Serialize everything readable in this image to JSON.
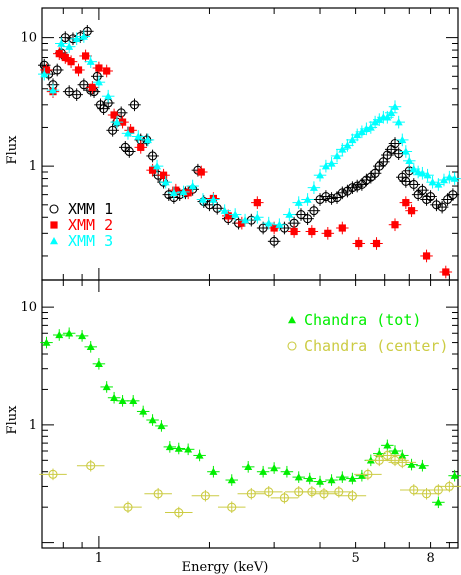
{
  "chart_data": [
    {
      "type": "scatter",
      "panel": "top",
      "xscale": "log",
      "yscale": "log",
      "xlim": [
        0.7,
        9.5
      ],
      "ylim": [
        0.13,
        17
      ],
      "ylabel": "Flux",
      "xlabel": "",
      "y_tick_labels": [
        "10",
        "1"
      ],
      "legend_position": "bottom-left",
      "series": [
        {
          "name": "XMM 1",
          "marker": "open-circle",
          "color": "#000000",
          "points": [
            [
              0.71,
              6.1
            ],
            [
              0.73,
              5.2
            ],
            [
              0.75,
              4.3
            ],
            [
              0.77,
              5.6
            ],
            [
              0.79,
              7.6
            ],
            [
              0.81,
              10.0
            ],
            [
              0.83,
              3.8
            ],
            [
              0.85,
              9.8
            ],
            [
              0.87,
              3.6
            ],
            [
              0.89,
              10.2
            ],
            [
              0.91,
              4.3
            ],
            [
              0.93,
              11.2
            ],
            [
              0.95,
              3.9
            ],
            [
              0.97,
              3.8
            ],
            [
              0.99,
              5.0
            ],
            [
              1.01,
              3.0
            ],
            [
              1.03,
              2.8
            ],
            [
              1.06,
              3.1
            ],
            [
              1.09,
              1.9
            ],
            [
              1.12,
              2.2
            ],
            [
              1.15,
              2.6
            ],
            [
              1.18,
              1.4
            ],
            [
              1.21,
              1.3
            ],
            [
              1.25,
              3.0
            ],
            [
              1.3,
              1.6
            ],
            [
              1.35,
              1.6
            ],
            [
              1.4,
              1.2
            ],
            [
              1.45,
              0.85
            ],
            [
              1.5,
              0.75
            ],
            [
              1.55,
              0.6
            ],
            [
              1.6,
              0.57
            ],
            [
              1.66,
              0.6
            ],
            [
              1.72,
              0.62
            ],
            [
              1.8,
              0.66
            ],
            [
              1.86,
              0.93
            ],
            [
              1.93,
              0.53
            ],
            [
              2.0,
              0.5
            ],
            [
              2.1,
              0.47
            ],
            [
              2.25,
              0.39
            ],
            [
              2.4,
              0.36
            ],
            [
              2.6,
              0.38
            ],
            [
              2.8,
              0.33
            ],
            [
              3.0,
              0.26
            ],
            [
              3.2,
              0.33
            ],
            [
              3.4,
              0.36
            ],
            [
              3.55,
              0.42
            ],
            [
              3.7,
              0.39
            ],
            [
              3.85,
              0.45
            ],
            [
              4.0,
              0.55
            ],
            [
              4.15,
              0.58
            ],
            [
              4.3,
              0.56
            ],
            [
              4.45,
              0.57
            ],
            [
              4.6,
              0.62
            ],
            [
              4.75,
              0.64
            ],
            [
              4.9,
              0.68
            ],
            [
              5.05,
              0.7
            ],
            [
              5.2,
              0.72
            ],
            [
              5.35,
              0.78
            ],
            [
              5.5,
              0.82
            ],
            [
              5.65,
              0.88
            ],
            [
              5.8,
              1.0
            ],
            [
              5.95,
              1.08
            ],
            [
              6.1,
              1.22
            ],
            [
              6.25,
              1.35
            ],
            [
              6.4,
              1.5
            ],
            [
              6.55,
              1.25
            ],
            [
              6.7,
              0.82
            ],
            [
              6.85,
              0.76
            ],
            [
              7.0,
              0.92
            ],
            [
              7.2,
              0.72
            ],
            [
              7.4,
              0.6
            ],
            [
              7.6,
              0.65
            ],
            [
              7.8,
              0.55
            ],
            [
              8.0,
              0.58
            ],
            [
              8.3,
              0.5
            ],
            [
              8.6,
              0.48
            ],
            [
              8.9,
              0.55
            ],
            [
              9.2,
              0.6
            ]
          ]
        },
        {
          "name": "XMM 2",
          "marker": "filled-square",
          "color": "#ff0000",
          "points": [
            [
              0.72,
              5.6
            ],
            [
              0.75,
              3.8
            ],
            [
              0.78,
              7.5
            ],
            [
              0.81,
              7.0
            ],
            [
              0.84,
              6.5
            ],
            [
              0.88,
              5.6
            ],
            [
              0.92,
              7.2
            ],
            [
              0.96,
              4.1
            ],
            [
              1.0,
              5.8
            ],
            [
              1.05,
              5.5
            ],
            [
              1.1,
              2.5
            ],
            [
              1.16,
              2.2
            ],
            [
              1.22,
              1.9
            ],
            [
              1.3,
              1.4
            ],
            [
              1.4,
              0.93
            ],
            [
              1.5,
              0.85
            ],
            [
              1.62,
              0.65
            ],
            [
              1.75,
              0.62
            ],
            [
              1.9,
              0.9
            ],
            [
              2.05,
              0.56
            ],
            [
              2.25,
              0.41
            ],
            [
              2.45,
              0.36
            ],
            [
              2.7,
              0.52
            ],
            [
              3.0,
              0.33
            ],
            [
              3.4,
              0.31
            ],
            [
              3.8,
              0.31
            ],
            [
              4.2,
              0.3
            ],
            [
              4.6,
              0.33
            ],
            [
              5.1,
              0.25
            ],
            [
              5.7,
              0.25
            ],
            [
              6.4,
              0.35
            ],
            [
              6.85,
              0.52
            ],
            [
              7.1,
              0.45
            ],
            [
              7.8,
              0.2
            ],
            [
              8.8,
              0.15
            ]
          ]
        },
        {
          "name": "XMM 3",
          "marker": "filled-triangle",
          "color": "#00ffff",
          "points": [
            [
              0.71,
              5.2
            ],
            [
              0.75,
              3.9
            ],
            [
              0.79,
              9.0
            ],
            [
              0.83,
              8.5
            ],
            [
              0.87,
              9.8
            ],
            [
              0.91,
              10.2
            ],
            [
              0.95,
              6.5
            ],
            [
              1.0,
              4.5
            ],
            [
              1.06,
              3.5
            ],
            [
              1.12,
              2.2
            ],
            [
              1.2,
              1.8
            ],
            [
              1.28,
              1.7
            ],
            [
              1.36,
              1.6
            ],
            [
              1.44,
              1.0
            ],
            [
              1.52,
              0.75
            ],
            [
              1.6,
              0.62
            ],
            [
              1.7,
              0.63
            ],
            [
              1.8,
              0.7
            ],
            [
              1.92,
              0.55
            ],
            [
              2.05,
              0.55
            ],
            [
              2.2,
              0.45
            ],
            [
              2.35,
              0.42
            ],
            [
              2.5,
              0.38
            ],
            [
              2.7,
              0.4
            ],
            [
              2.9,
              0.36
            ],
            [
              3.1,
              0.35
            ],
            [
              3.3,
              0.42
            ],
            [
              3.5,
              0.52
            ],
            [
              3.7,
              0.55
            ],
            [
              3.85,
              0.68
            ],
            [
              4.0,
              0.85
            ],
            [
              4.15,
              1.0
            ],
            [
              4.3,
              1.05
            ],
            [
              4.45,
              1.2
            ],
            [
              4.6,
              1.35
            ],
            [
              4.75,
              1.45
            ],
            [
              4.9,
              1.6
            ],
            [
              5.05,
              1.75
            ],
            [
              5.2,
              1.85
            ],
            [
              5.35,
              1.95
            ],
            [
              5.5,
              2.0
            ],
            [
              5.65,
              2.2
            ],
            [
              5.8,
              2.3
            ],
            [
              5.95,
              2.4
            ],
            [
              6.1,
              2.4
            ],
            [
              6.25,
              2.6
            ],
            [
              6.4,
              2.9
            ],
            [
              6.55,
              2.2
            ],
            [
              6.7,
              1.6
            ],
            [
              6.85,
              1.3
            ],
            [
              7.0,
              1.1
            ],
            [
              7.2,
              0.95
            ],
            [
              7.4,
              0.9
            ],
            [
              7.6,
              0.88
            ],
            [
              7.85,
              0.85
            ],
            [
              8.1,
              0.75
            ],
            [
              8.4,
              0.72
            ],
            [
              8.7,
              0.78
            ],
            [
              9.0,
              0.82
            ],
            [
              9.3,
              0.8
            ]
          ]
        }
      ]
    },
    {
      "type": "scatter",
      "panel": "bottom",
      "xscale": "log",
      "yscale": "log",
      "xlim": [
        0.7,
        9.5
      ],
      "ylim": [
        0.09,
        17
      ],
      "ylabel": "Flux",
      "xlabel": "Energy (keV)",
      "x_tick_labels": [
        "1",
        "5",
        "8"
      ],
      "y_tick_labels": [
        "10",
        "1"
      ],
      "legend_position": "top-right",
      "series": [
        {
          "name": "Chandra (tot)",
          "marker": "filled-triangle",
          "color": "#00ee00",
          "points": [
            [
              0.72,
              5.0
            ],
            [
              0.78,
              5.8
            ],
            [
              0.83,
              6.0
            ],
            [
              0.9,
              5.7
            ],
            [
              0.95,
              4.6
            ],
            [
              1.0,
              3.3
            ],
            [
              1.05,
              2.1
            ],
            [
              1.1,
              1.7
            ],
            [
              1.16,
              1.6
            ],
            [
              1.24,
              1.6
            ],
            [
              1.32,
              1.3
            ],
            [
              1.4,
              1.1
            ],
            [
              1.48,
              0.98
            ],
            [
              1.56,
              0.65
            ],
            [
              1.65,
              0.63
            ],
            [
              1.75,
              0.62
            ],
            [
              1.88,
              0.55
            ],
            [
              2.05,
              0.4
            ],
            [
              2.3,
              0.34
            ],
            [
              2.55,
              0.44
            ],
            [
              2.8,
              0.4
            ],
            [
              3.0,
              0.43
            ],
            [
              3.25,
              0.4
            ],
            [
              3.5,
              0.36
            ],
            [
              3.75,
              0.35
            ],
            [
              4.0,
              0.33
            ],
            [
              4.3,
              0.34
            ],
            [
              4.6,
              0.36
            ],
            [
              4.9,
              0.35
            ],
            [
              5.2,
              0.37
            ],
            [
              5.5,
              0.5
            ],
            [
              5.8,
              0.57
            ],
            [
              6.1,
              0.67
            ],
            [
              6.4,
              0.6
            ],
            [
              6.7,
              0.55
            ],
            [
              7.1,
              0.46
            ],
            [
              7.6,
              0.45
            ],
            [
              8.4,
              0.22
            ],
            [
              9.3,
              0.37
            ]
          ]
        },
        {
          "name": "Chandra (center)",
          "marker": "open-circle-cross",
          "color": "#cccc44",
          "points": [
            [
              0.75,
              0.38
            ],
            [
              0.95,
              0.45
            ],
            [
              1.2,
              0.2
            ],
            [
              1.45,
              0.26
            ],
            [
              1.65,
              0.18
            ],
            [
              1.95,
              0.25
            ],
            [
              2.3,
              0.2
            ],
            [
              2.6,
              0.26
            ],
            [
              2.9,
              0.27
            ],
            [
              3.2,
              0.24
            ],
            [
              3.5,
              0.27
            ],
            [
              3.8,
              0.27
            ],
            [
              4.1,
              0.26
            ],
            [
              4.5,
              0.27
            ],
            [
              4.9,
              0.25
            ],
            [
              5.4,
              0.38
            ],
            [
              5.8,
              0.5
            ],
            [
              6.1,
              0.55
            ],
            [
              6.4,
              0.5
            ],
            [
              6.7,
              0.48
            ],
            [
              7.2,
              0.28
            ],
            [
              7.8,
              0.26
            ],
            [
              8.4,
              0.28
            ],
            [
              9.0,
              0.3
            ]
          ]
        }
      ]
    }
  ]
}
